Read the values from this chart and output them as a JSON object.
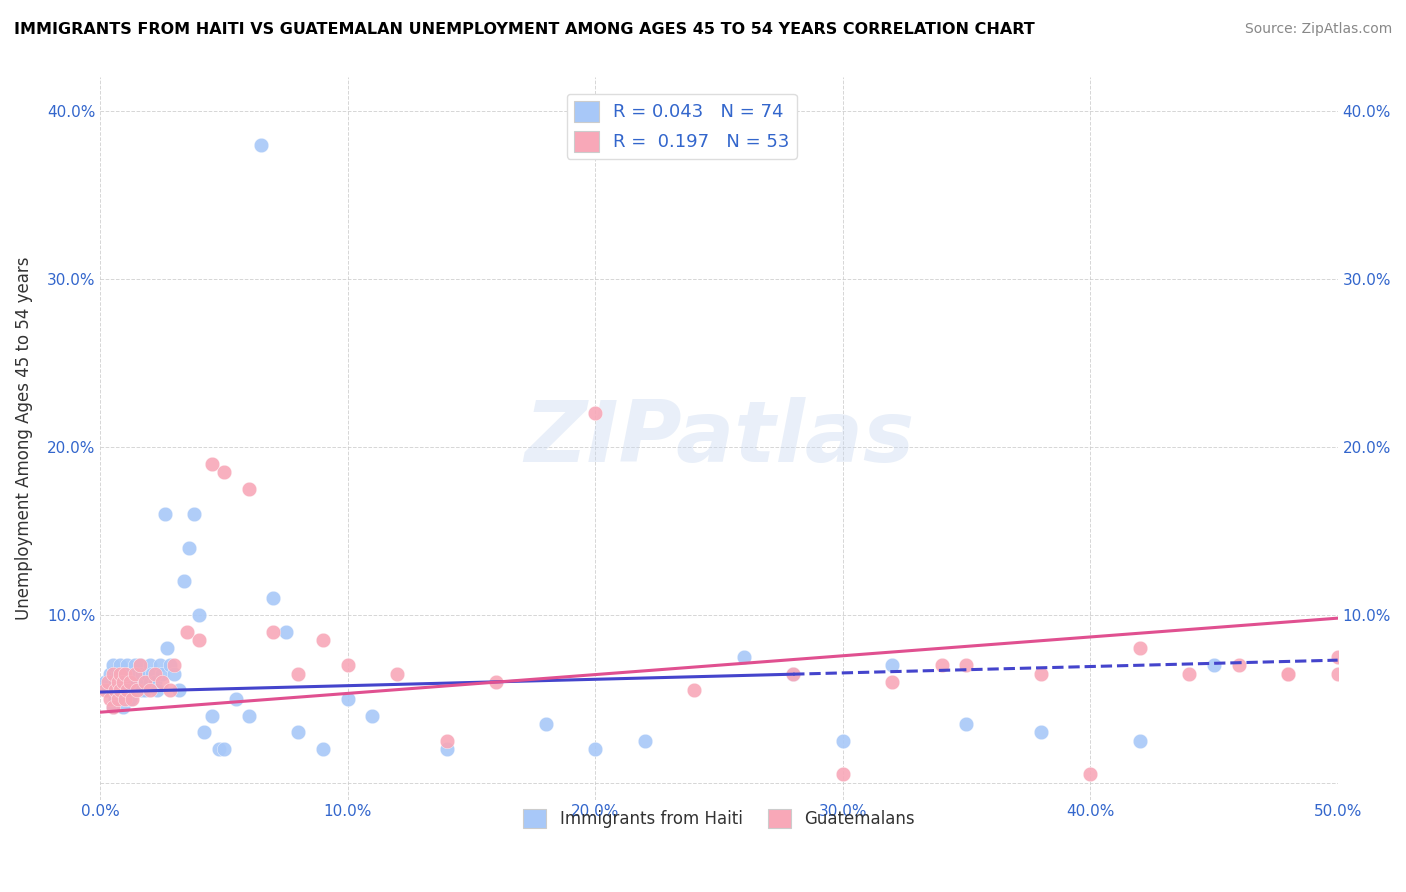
{
  "title": "IMMIGRANTS FROM HAITI VS GUATEMALAN UNEMPLOYMENT AMONG AGES 45 TO 54 YEARS CORRELATION CHART",
  "source": "Source: ZipAtlas.com",
  "ylabel": "Unemployment Among Ages 45 to 54 years",
  "xlim": [
    0.0,
    0.5
  ],
  "ylim": [
    -0.01,
    0.42
  ],
  "xticks": [
    0.0,
    0.1,
    0.2,
    0.3,
    0.4,
    0.5
  ],
  "yticks": [
    0.0,
    0.1,
    0.2,
    0.3,
    0.4
  ],
  "xticklabels": [
    "0.0%",
    "10.0%",
    "20.0%",
    "30.0%",
    "40.0%",
    "50.0%"
  ],
  "yticklabels": [
    "",
    "10.0%",
    "20.0%",
    "30.0%",
    "40.0%"
  ],
  "haiti_R": 0.043,
  "haiti_N": 74,
  "guatemalan_R": 0.197,
  "guatemalan_N": 53,
  "haiti_color": "#a8c8f8",
  "guatemalan_color": "#f8a8b8",
  "haiti_line_color": "#4444cc",
  "guatemalan_line_color": "#e05090",
  "watermark": "ZIPatlas",
  "legend_haiti_label": "Immigrants from Haiti",
  "legend_guatemalan_label": "Guatemalans",
  "haiti_line_solid_end": 0.28,
  "haiti_line_y0": 0.054,
  "haiti_line_y1": 0.073,
  "guatemalan_line_y0": 0.042,
  "guatemalan_line_y1": 0.098,
  "haiti_x": [
    0.002,
    0.003,
    0.004,
    0.005,
    0.005,
    0.006,
    0.006,
    0.007,
    0.007,
    0.008,
    0.008,
    0.008,
    0.009,
    0.009,
    0.01,
    0.01,
    0.011,
    0.011,
    0.012,
    0.012,
    0.013,
    0.013,
    0.014,
    0.014,
    0.015,
    0.015,
    0.016,
    0.016,
    0.017,
    0.017,
    0.018,
    0.018,
    0.019,
    0.02,
    0.02,
    0.021,
    0.022,
    0.023,
    0.024,
    0.025,
    0.026,
    0.027,
    0.028,
    0.03,
    0.032,
    0.034,
    0.036,
    0.038,
    0.04,
    0.042,
    0.045,
    0.048,
    0.05,
    0.055,
    0.06,
    0.065,
    0.07,
    0.075,
    0.08,
    0.09,
    0.1,
    0.11,
    0.14,
    0.18,
    0.2,
    0.22,
    0.26,
    0.28,
    0.3,
    0.32,
    0.35,
    0.38,
    0.42,
    0.45
  ],
  "haiti_y": [
    0.06,
    0.055,
    0.065,
    0.045,
    0.07,
    0.05,
    0.06,
    0.055,
    0.065,
    0.06,
    0.055,
    0.07,
    0.045,
    0.06,
    0.065,
    0.055,
    0.06,
    0.07,
    0.05,
    0.065,
    0.06,
    0.055,
    0.07,
    0.06,
    0.065,
    0.055,
    0.06,
    0.07,
    0.055,
    0.065,
    0.06,
    0.055,
    0.065,
    0.06,
    0.07,
    0.065,
    0.06,
    0.055,
    0.07,
    0.065,
    0.16,
    0.08,
    0.07,
    0.065,
    0.055,
    0.12,
    0.14,
    0.16,
    0.1,
    0.03,
    0.04,
    0.02,
    0.02,
    0.05,
    0.04,
    0.38,
    0.11,
    0.09,
    0.03,
    0.02,
    0.05,
    0.04,
    0.02,
    0.035,
    0.02,
    0.025,
    0.075,
    0.065,
    0.025,
    0.07,
    0.035,
    0.03,
    0.025,
    0.07
  ],
  "guatemalan_x": [
    0.002,
    0.003,
    0.004,
    0.005,
    0.005,
    0.006,
    0.007,
    0.007,
    0.008,
    0.008,
    0.009,
    0.01,
    0.01,
    0.011,
    0.012,
    0.013,
    0.014,
    0.015,
    0.016,
    0.018,
    0.02,
    0.022,
    0.025,
    0.028,
    0.03,
    0.035,
    0.04,
    0.045,
    0.05,
    0.06,
    0.07,
    0.08,
    0.09,
    0.1,
    0.12,
    0.14,
    0.16,
    0.2,
    0.24,
    0.28,
    0.3,
    0.32,
    0.35,
    0.38,
    0.4,
    0.42,
    0.44,
    0.46,
    0.48,
    0.5,
    0.5,
    0.34,
    0.48
  ],
  "guatemalan_y": [
    0.055,
    0.06,
    0.05,
    0.045,
    0.065,
    0.055,
    0.06,
    0.05,
    0.065,
    0.055,
    0.06,
    0.05,
    0.065,
    0.055,
    0.06,
    0.05,
    0.065,
    0.055,
    0.07,
    0.06,
    0.055,
    0.065,
    0.06,
    0.055,
    0.07,
    0.09,
    0.085,
    0.19,
    0.185,
    0.175,
    0.09,
    0.065,
    0.085,
    0.07,
    0.065,
    0.025,
    0.06,
    0.22,
    0.055,
    0.065,
    0.005,
    0.06,
    0.07,
    0.065,
    0.005,
    0.08,
    0.065,
    0.07,
    0.065,
    0.065,
    0.075,
    0.07,
    0.065
  ]
}
